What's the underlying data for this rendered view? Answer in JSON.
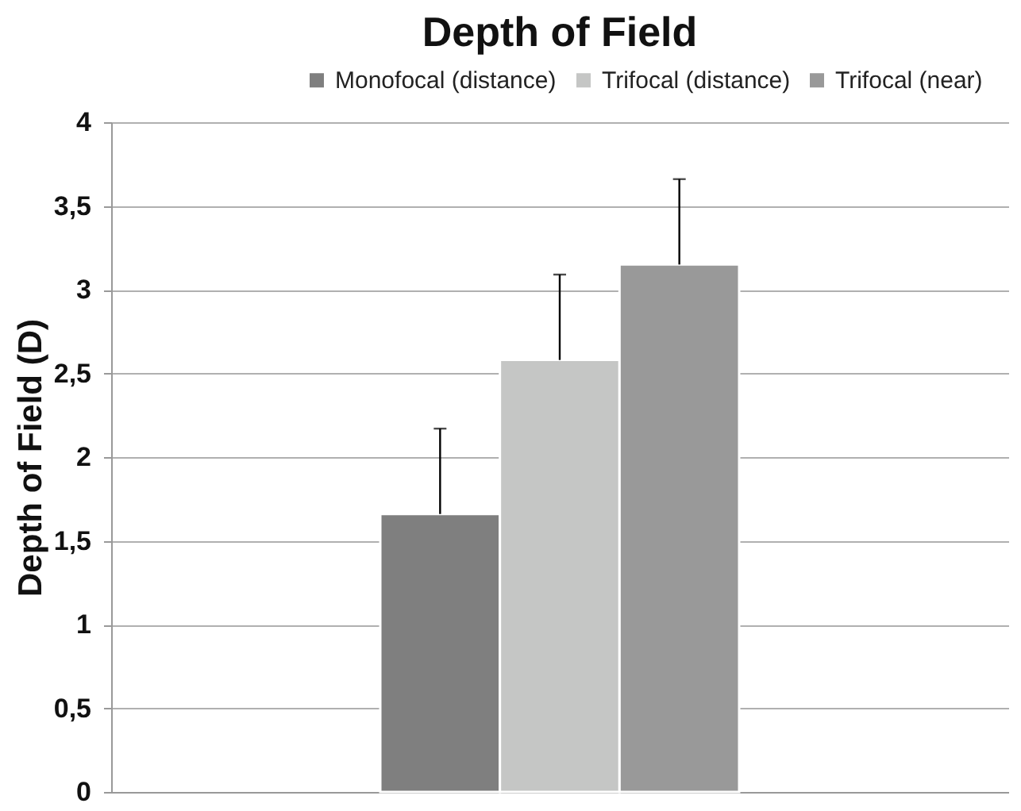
{
  "chart_data": {
    "type": "bar",
    "title": "Depth of Field",
    "ylabel": "Depth of Field (D)",
    "categories": [
      null
    ],
    "series": [
      {
        "name": "Monofocal (distance)",
        "color": "#7f7f7f",
        "values": [
          1.66
        ],
        "errors": [
          [
            1.66,
            2.17
          ]
        ]
      },
      {
        "name": "Trifocal (distance)",
        "color": "#c5c6c5",
        "values": [
          2.58
        ],
        "errors": [
          [
            2.58,
            3.09
          ]
        ]
      },
      {
        "name": "Trifocal (near)",
        "color": "#999999",
        "values": [
          3.15
        ],
        "errors": [
          [
            3.15,
            3.66
          ]
        ]
      }
    ],
    "ylim": [
      0,
      4
    ],
    "yticks": [
      0,
      {
        "value": 0.5,
        "label": "0,5"
      },
      1,
      {
        "value": 1.5,
        "label": "1,5"
      },
      2,
      {
        "value": 2.5,
        "label": "2,5"
      },
      3,
      {
        "value": 3.5,
        "label": "3,5"
      },
      4
    ],
    "grid": "y",
    "legend": "top right"
  }
}
